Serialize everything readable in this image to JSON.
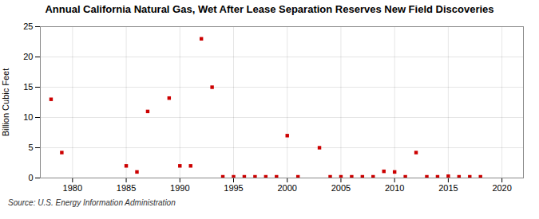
{
  "chart_data": {
    "type": "scatter",
    "title": "Annual California Natural Gas, Wet After Lease Separation Reserves New Field Discoveries",
    "ylabel": "Billion Cubic Feet",
    "source": "Source: U.S. Energy Information Administration",
    "x": [
      1978,
      1979,
      1985,
      1986,
      1987,
      1989,
      1990,
      1991,
      1992,
      1993,
      1994,
      1995,
      1996,
      1997,
      1998,
      1999,
      2000,
      2001,
      2003,
      2004,
      2005,
      2006,
      2007,
      2008,
      2009,
      2010,
      2011,
      2012,
      2013,
      2014,
      2015,
      2016,
      2017,
      2018
    ],
    "values": [
      13.0,
      4.2,
      2.0,
      1.0,
      11.0,
      13.2,
      2.0,
      2.0,
      23.0,
      15.0,
      0.2,
      0.2,
      0.2,
      0.2,
      0.2,
      0.2,
      7.0,
      0.2,
      5.0,
      0.2,
      0.2,
      0.2,
      0.2,
      0.2,
      1.1,
      1.0,
      0.2,
      4.2,
      0.2,
      0.2,
      0.3,
      0.2,
      0.2,
      0.2
    ],
    "color": "#cc0000",
    "marker": "square",
    "xlim": [
      1977,
      2022
    ],
    "ylim": [
      0,
      25
    ],
    "xticks": [
      1980,
      1985,
      1990,
      1995,
      2000,
      2005,
      2010,
      2015,
      2020
    ],
    "yticks": [
      0,
      5,
      10,
      15,
      20,
      25
    ],
    "grid": true
  }
}
